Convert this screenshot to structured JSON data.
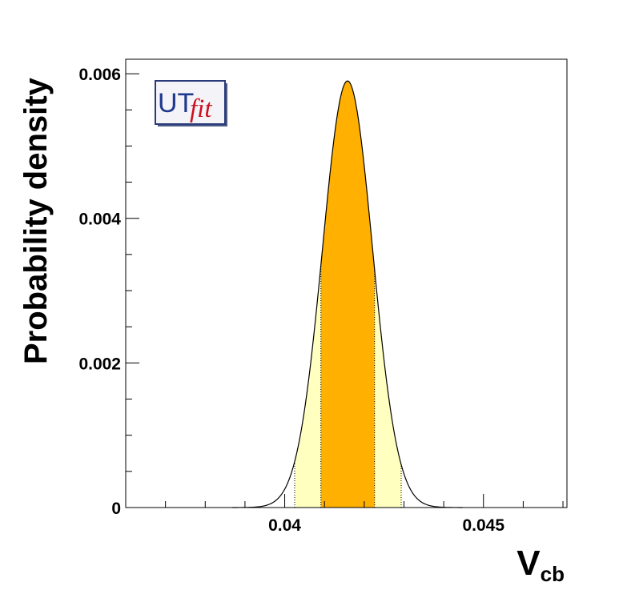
{
  "chart_data": {
    "type": "area",
    "xlabel": "V",
    "xlabel_sub": "cb",
    "ylabel": "Probability density",
    "xlim": [
      0.036,
      0.0471
    ],
    "ylim": [
      0,
      0.0062
    ],
    "x_ticks": [
      0.04,
      0.045
    ],
    "x_tick_labels": [
      "0.04",
      "0.045"
    ],
    "y_ticks": [
      0,
      0.002,
      0.004,
      0.006
    ],
    "y_tick_labels": [
      "0",
      "0.002",
      "0.004",
      "0.006"
    ],
    "distribution": {
      "peak_x": 0.04158,
      "peak_y": 0.0059,
      "sigma": 0.00063
    },
    "intervals": {
      "inner_68": [
        0.04091,
        0.04226
      ],
      "outer_95": [
        0.04025,
        0.04293
      ]
    },
    "colors": {
      "inner_band": "#ffb000",
      "outer_band": "#ffffc0",
      "curve": "#000000",
      "frame": "#000000"
    },
    "grid": false,
    "legend": "none"
  },
  "logo": {
    "ut": "UT",
    "fit": "fit",
    "ut_color": "#1e3a8c",
    "fit_color": "#cc1020"
  }
}
